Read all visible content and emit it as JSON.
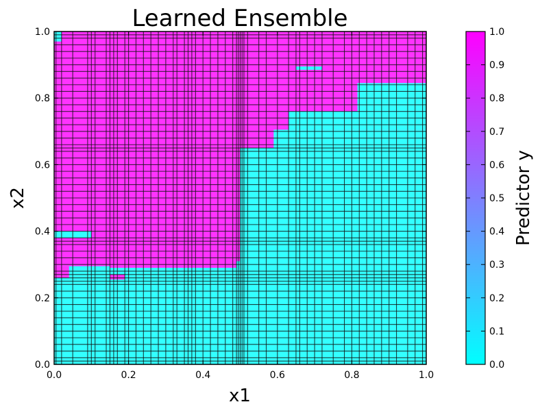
{
  "chart_data": {
    "type": "heatmap",
    "title": "Learned Ensemble",
    "xlabel": "x1",
    "ylabel": "x2",
    "xlim": [
      0.0,
      1.0
    ],
    "ylim": [
      0.0,
      1.0
    ],
    "xticks": [
      "0.0",
      "0.2",
      "0.4",
      "0.6",
      "0.8",
      "1.0"
    ],
    "yticks": [
      "0.0",
      "0.2",
      "0.4",
      "0.6",
      "0.8",
      "1.0"
    ],
    "colorbar": {
      "label": "Predictor y",
      "range": [
        0.0,
        1.0
      ],
      "ticks": [
        "0.0",
        "0.1",
        "0.2",
        "0.3",
        "0.4",
        "0.5",
        "0.6",
        "0.7",
        "0.8",
        "0.9",
        "1.0"
      ],
      "colormap": "cool",
      "color_low": "#00ffff",
      "color_high": "#ff00ff"
    },
    "fill_colors": {
      "low": "#33ffff",
      "high": "#ff33ff"
    },
    "grid": false,
    "regions": [
      {
        "x0": 0.0,
        "x1": 0.5,
        "y0": 0.29,
        "y1": 1.0,
        "value": 1
      },
      {
        "x0": 0.5,
        "x1": 1.0,
        "y0": 0.845,
        "y1": 1.0,
        "value": 1
      },
      {
        "x0": 0.5,
        "x1": 0.815,
        "y0": 0.76,
        "y1": 0.845,
        "value": 1
      },
      {
        "x0": 0.5,
        "x1": 0.59,
        "y0": 0.65,
        "y1": 0.76,
        "value": 1
      },
      {
        "x0": 0.59,
        "x1": 0.63,
        "y0": 0.705,
        "y1": 0.76,
        "value": 1
      },
      {
        "x0": 0.0,
        "x1": 0.5,
        "y0": 0.0,
        "y1": 0.29,
        "value": 0
      },
      {
        "x0": 0.5,
        "x1": 1.0,
        "y0": 0.0,
        "y1": 0.65,
        "value": 0
      },
      {
        "x0": 0.59,
        "x1": 1.0,
        "y0": 0.65,
        "y1": 0.705,
        "value": 0
      },
      {
        "x0": 0.63,
        "x1": 1.0,
        "y0": 0.705,
        "y1": 0.76,
        "value": 0
      },
      {
        "x0": 0.815,
        "x1": 1.0,
        "y0": 0.76,
        "y1": 0.845,
        "value": 0
      },
      {
        "x0": 0.0,
        "x1": 0.1,
        "y0": 0.38,
        "y1": 0.4,
        "value": 0
      },
      {
        "x0": 0.0,
        "x1": 0.02,
        "y0": 0.97,
        "y1": 1.0,
        "value": 0
      },
      {
        "x0": 0.65,
        "x1": 0.72,
        "y0": 0.885,
        "y1": 0.895,
        "value": 0
      },
      {
        "x0": 0.0,
        "x1": 0.15,
        "y0": 0.26,
        "y1": 0.295,
        "value": 0
      },
      {
        "x0": 0.15,
        "x1": 0.5,
        "y0": 0.265,
        "y1": 0.29,
        "value": 0
      },
      {
        "x0": 0.0,
        "x1": 0.04,
        "y0": 0.26,
        "y1": 0.295,
        "value": 1
      },
      {
        "x0": 0.15,
        "x1": 0.19,
        "y0": 0.255,
        "y1": 0.27,
        "value": 1
      },
      {
        "x0": 0.49,
        "x1": 0.52,
        "y0": 0.29,
        "y1": 0.31,
        "value": 0
      }
    ],
    "split_x": [
      0.005,
      0.02,
      0.05,
      0.09,
      0.1,
      0.11,
      0.14,
      0.15,
      0.16,
      0.17,
      0.19,
      0.2,
      0.22,
      0.24,
      0.26,
      0.28,
      0.3,
      0.32,
      0.33,
      0.35,
      0.36,
      0.37,
      0.38,
      0.4,
      0.42,
      0.44,
      0.46,
      0.48,
      0.49,
      0.495,
      0.5,
      0.505,
      0.51,
      0.52,
      0.55,
      0.57,
      0.6,
      0.63,
      0.65,
      0.66,
      0.68,
      0.7,
      0.72,
      0.75,
      0.78,
      0.8,
      0.82,
      0.84,
      0.86,
      0.88,
      0.9,
      0.92,
      0.95,
      0.97,
      0.99
    ],
    "split_y": [
      0.01,
      0.02,
      0.04,
      0.06,
      0.08,
      0.1,
      0.12,
      0.14,
      0.16,
      0.18,
      0.2,
      0.22,
      0.24,
      0.25,
      0.26,
      0.27,
      0.28,
      0.3,
      0.32,
      0.34,
      0.36,
      0.37,
      0.38,
      0.4,
      0.42,
      0.44,
      0.46,
      0.48,
      0.5,
      0.52,
      0.54,
      0.56,
      0.58,
      0.6,
      0.62,
      0.64,
      0.65,
      0.66,
      0.68,
      0.7,
      0.72,
      0.74,
      0.76,
      0.78,
      0.8,
      0.82,
      0.84,
      0.86,
      0.88,
      0.9,
      0.92,
      0.94,
      0.96,
      0.98,
      0.99
    ]
  }
}
